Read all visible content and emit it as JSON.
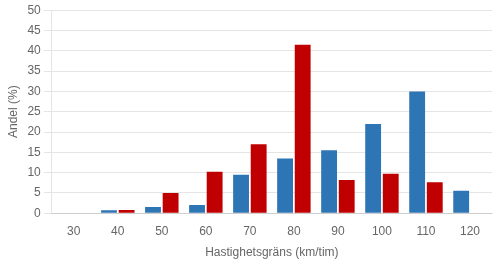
{
  "chart_data": {
    "type": "bar",
    "categories": [
      30,
      40,
      50,
      60,
      70,
      80,
      90,
      100,
      110,
      120
    ],
    "series": [
      {
        "color": "#2E75B6",
        "values": [
          0,
          0.7,
          1.5,
          2.0,
          9.5,
          13.5,
          15.5,
          22.0,
          30.0,
          5.5
        ]
      },
      {
        "color": "#C00000",
        "values": [
          0,
          0.8,
          5.0,
          10.2,
          17.0,
          41.5,
          8.2,
          9.7,
          7.6,
          0
        ]
      }
    ],
    "xlabel": "Hastighetsgräns (km/tim)",
    "ylabel": "Andel (%)",
    "ylim": [
      0,
      50
    ],
    "yticks": [
      0,
      5,
      10,
      15,
      20,
      25,
      30,
      35,
      40,
      45,
      50
    ],
    "grid": true
  }
}
